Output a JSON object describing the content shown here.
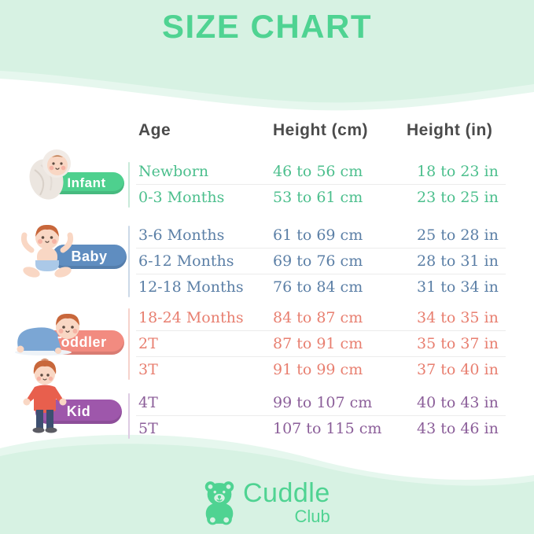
{
  "title": "SIZE CHART",
  "columns": {
    "age": "Age",
    "cm": "Height (cm)",
    "in": "Height (in)"
  },
  "groups": [
    {
      "id": "infant",
      "label": "Infant",
      "pill_color": "#4ed08e",
      "text_color": "#4cbf8d",
      "line_color": "#c8ead9",
      "rows": [
        {
          "age": "Newborn",
          "height_cm": "46 to 56 cm",
          "height_in": "18 to 23 in"
        },
        {
          "age": "0-3 Months",
          "height_cm": "53 to 61 cm",
          "height_in": "23 to 25 in"
        }
      ]
    },
    {
      "id": "baby",
      "label": "Baby",
      "pill_color": "#5f8dc0",
      "text_color": "#5b7fa6",
      "line_color": "#ccd9e8",
      "rows": [
        {
          "age": "3-6 Months",
          "height_cm": "61 to 69 cm",
          "height_in": "25 to 28 in"
        },
        {
          "age": "6-12 Months",
          "height_cm": "69 to 76 cm",
          "height_in": "28 to 31 in"
        },
        {
          "age": "12-18 Months",
          "height_cm": "76 to 84 cm",
          "height_in": "31 to 34 in"
        }
      ]
    },
    {
      "id": "toddler",
      "label": "Toddler",
      "pill_color": "#f28b80",
      "text_color": "#e87f70",
      "line_color": "#f6d2cc",
      "rows": [
        {
          "age": "18-24 Months",
          "height_cm": "84 to 87 cm",
          "height_in": "34 to 35 in"
        },
        {
          "age": "2T",
          "height_cm": "87 to 91 cm",
          "height_in": "35 to 37 in"
        },
        {
          "age": "3T",
          "height_cm": "91 to 99 cm",
          "height_in": "37 to 40 in"
        }
      ]
    },
    {
      "id": "kid",
      "label": "Kid",
      "pill_color": "#9e57ab",
      "text_color": "#8b5e99",
      "line_color": "#ddcbe3",
      "rows": [
        {
          "age": "4T",
          "height_cm": "99 to 107 cm",
          "height_in": "40 to 43 in"
        },
        {
          "age": "5T",
          "height_cm": "107 to 115 cm",
          "height_in": "43 to 46 in"
        }
      ]
    }
  ],
  "logo": {
    "brand": "Cuddle",
    "sub": "Club",
    "color": "#4fd392"
  },
  "colors": {
    "background_mint": "#d7f2e3",
    "background_mint_light": "#e6f7ee",
    "title_green": "#4fd392",
    "header_text": "#4b4b4b",
    "row_divider": "#ececec"
  },
  "chart_data": {
    "type": "table",
    "title": "SIZE CHART",
    "columns": [
      "Age",
      "Height (cm)",
      "Height (in)"
    ],
    "rows": [
      [
        "Infant",
        "Newborn",
        "46 to 56 cm",
        "18 to 23 in"
      ],
      [
        "Infant",
        "0-3 Months",
        "53 to 61 cm",
        "23 to 25 in"
      ],
      [
        "Baby",
        "3-6 Months",
        "61 to 69 cm",
        "25 to 28 in"
      ],
      [
        "Baby",
        "6-12 Months",
        "69 to 76 cm",
        "28 to 31 in"
      ],
      [
        "Baby",
        "12-18 Months",
        "76 to 84 cm",
        "31 to 34 in"
      ],
      [
        "Toddler",
        "18-24 Months",
        "84 to 87 cm",
        "34 to 35 in"
      ],
      [
        "Toddler",
        "2T",
        "87 to 91 cm",
        "35 to 37 in"
      ],
      [
        "Toddler",
        "3T",
        "91 to 99 cm",
        "37 to 40 in"
      ],
      [
        "Kid",
        "4T",
        "99 to 107 cm",
        "40 to 43 in"
      ],
      [
        "Kid",
        "5T",
        "107 to 115 cm",
        "43 to 46 in"
      ]
    ]
  }
}
